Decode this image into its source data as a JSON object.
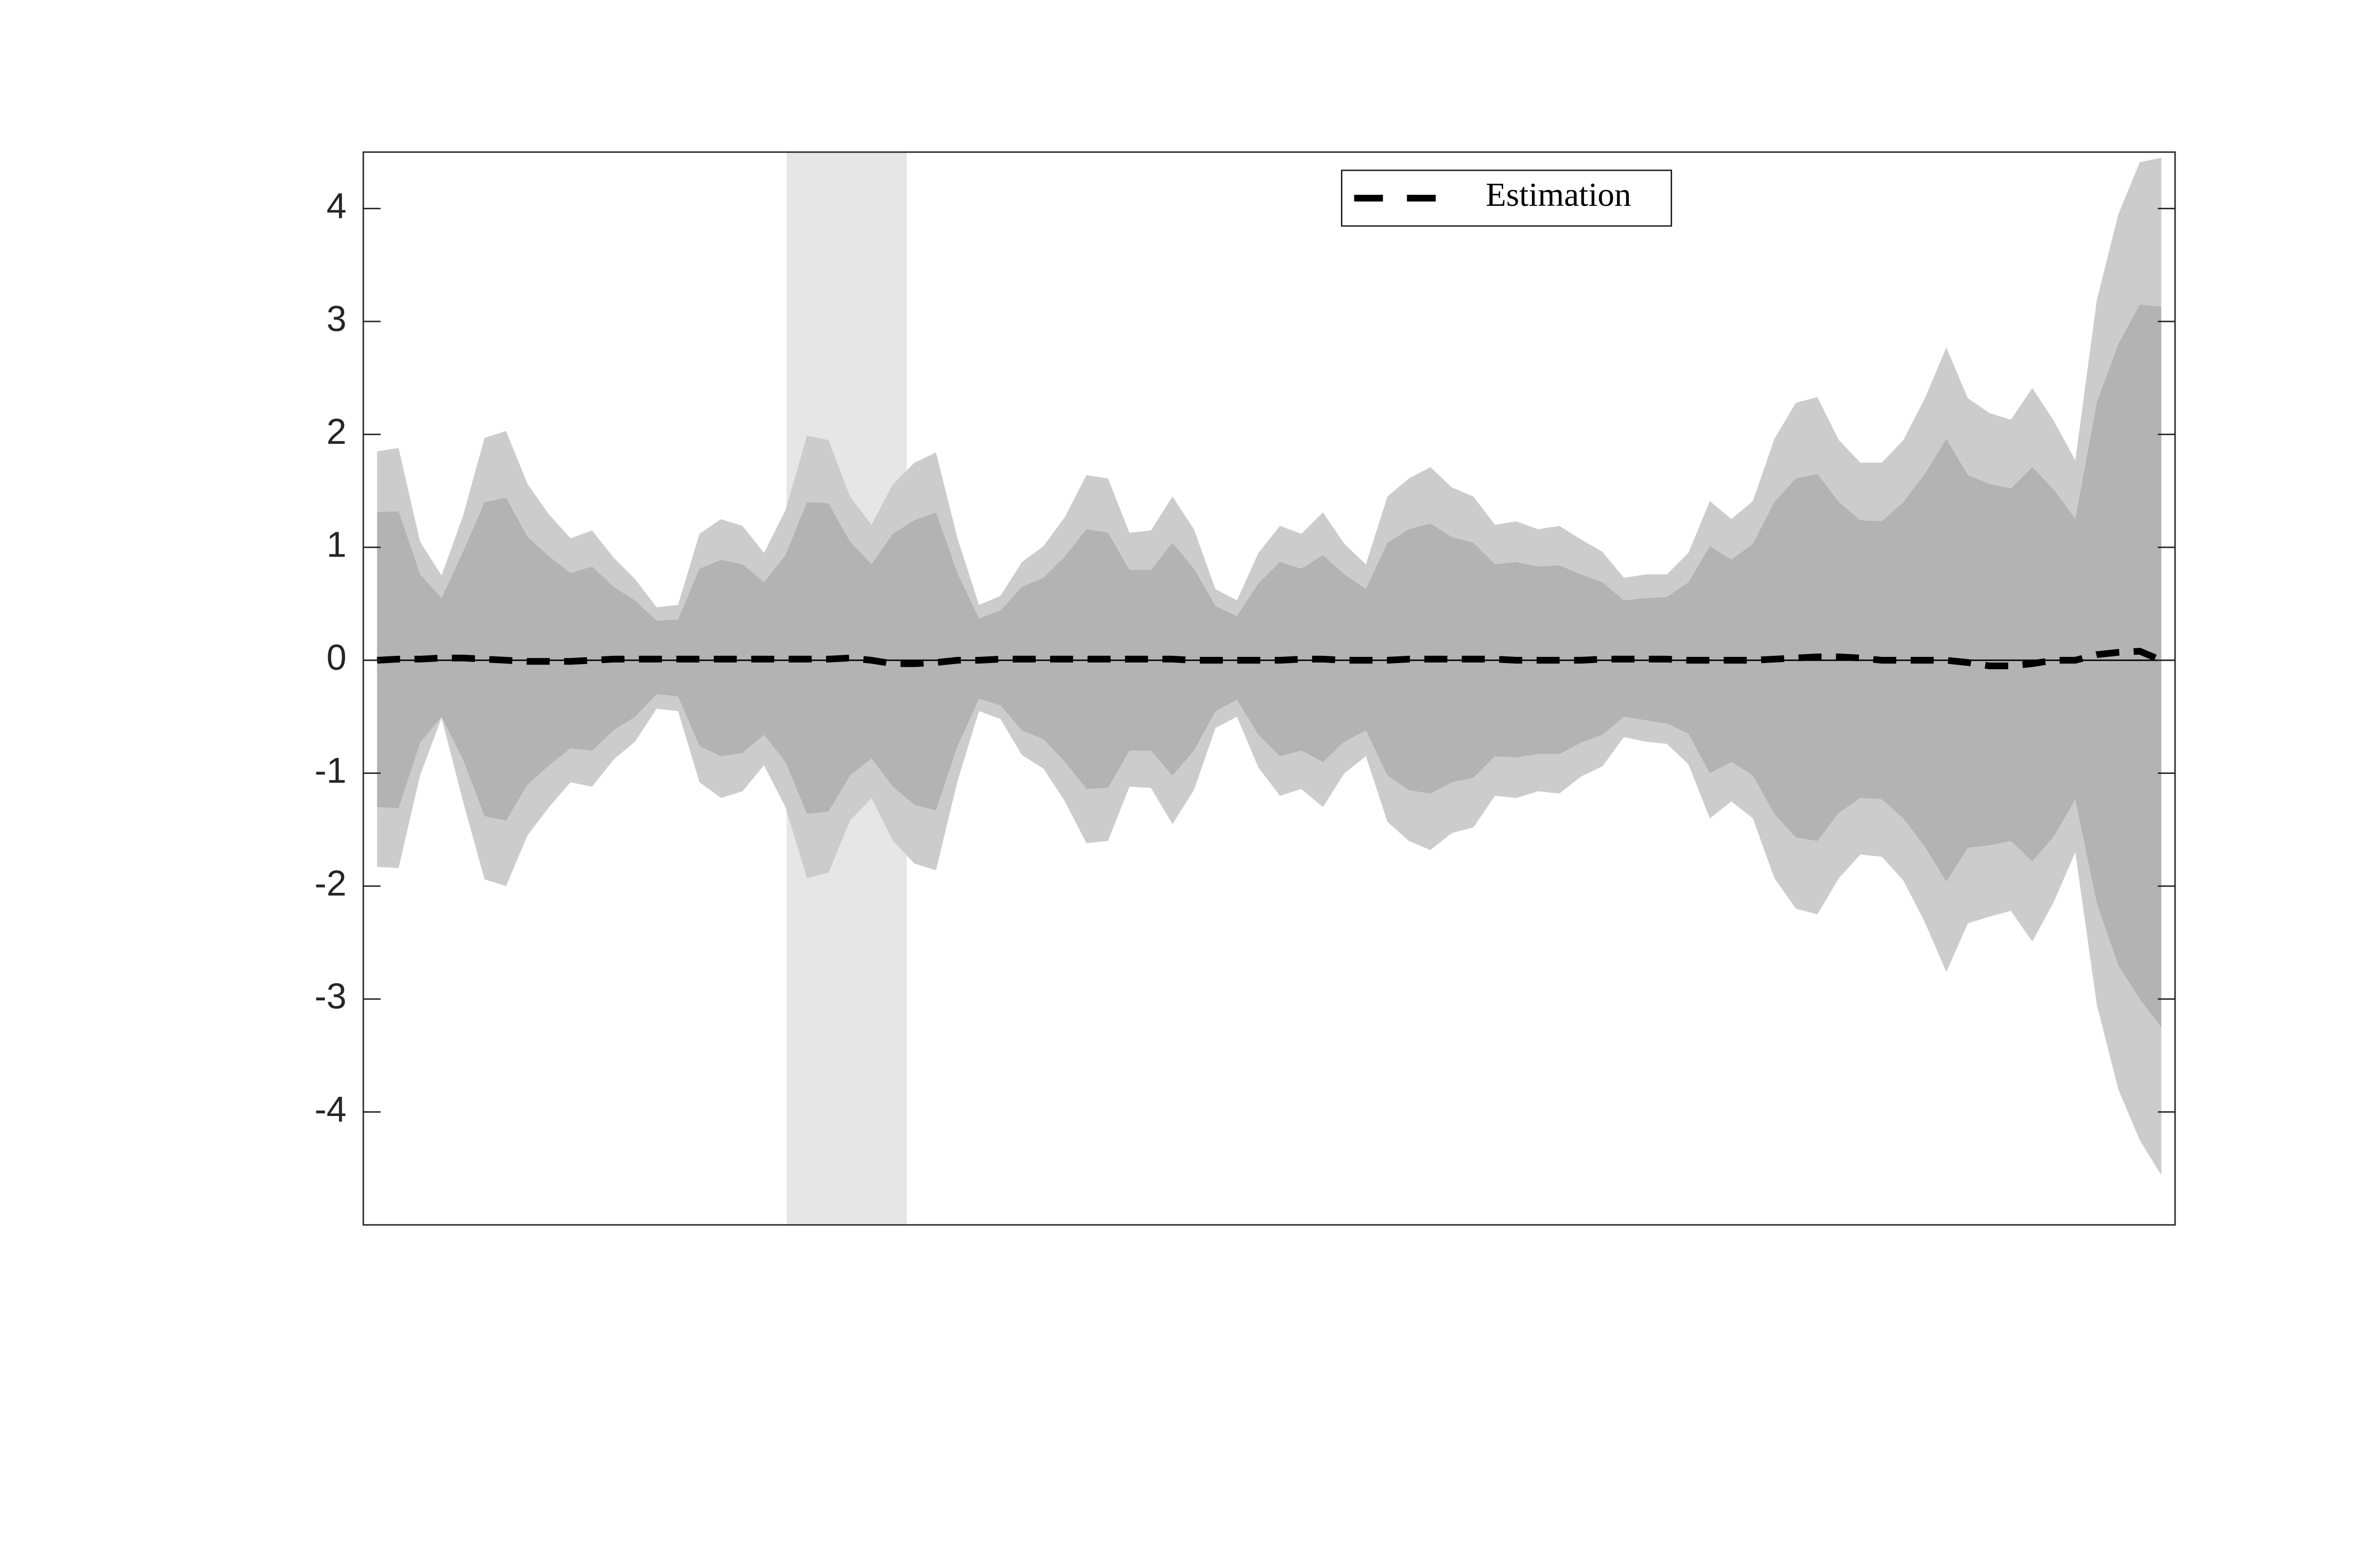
{
  "chart_data": {
    "type": "line",
    "x": [
      1,
      2,
      3,
      4,
      5,
      6,
      7,
      8,
      9,
      10,
      11,
      12,
      13,
      14,
      15,
      16,
      17,
      18,
      19,
      20,
      21,
      22,
      23,
      24,
      25,
      26,
      27,
      28,
      29,
      30,
      31,
      32,
      33,
      34,
      35,
      36,
      37,
      38,
      39,
      40,
      41,
      42,
      43,
      44,
      45,
      46,
      47,
      48,
      49,
      50,
      51,
      52,
      53,
      54,
      55,
      56,
      57,
      58,
      59,
      60,
      61,
      62,
      63,
      64,
      65,
      66,
      67,
      68,
      69,
      70,
      71,
      72,
      73,
      74,
      75,
      76,
      77,
      78,
      79,
      80,
      81,
      82,
      83,
      84
    ],
    "xlim": [
      0.36,
      84.64
    ],
    "ylim": [
      -5,
      4.5
    ],
    "yticks": [
      -4,
      -3,
      -2,
      -1,
      0,
      1,
      2,
      3,
      4
    ],
    "highlight": {
      "x": [
        20.05,
        25.64
      ],
      "color": "#e6e6e6"
    },
    "bands": [
      {
        "color": "#cccccc",
        "upper": [
          1.85,
          1.88,
          1.05,
          0.75,
          1.28,
          1.97,
          2.03,
          1.56,
          1.29,
          1.08,
          1.15,
          0.91,
          0.72,
          0.47,
          0.49,
          1.12,
          1.25,
          1.19,
          0.95,
          1.33,
          1.99,
          1.95,
          1.45,
          1.2,
          1.56,
          1.75,
          1.84,
          1.08,
          0.49,
          0.57,
          0.87,
          1.01,
          1.27,
          1.64,
          1.61,
          1.13,
          1.15,
          1.45,
          1.16,
          0.63,
          0.53,
          0.95,
          1.19,
          1.12,
          1.31,
          1.03,
          0.85,
          1.45,
          1.61,
          1.71,
          1.53,
          1.45,
          1.2,
          1.23,
          1.16,
          1.19,
          1.07,
          0.96,
          0.73,
          0.76,
          0.76,
          0.95,
          1.41,
          1.25,
          1.41,
          1.96,
          2.28,
          2.33,
          1.95,
          1.75,
          1.75,
          1.95,
          2.32,
          2.77,
          2.32,
          2.19,
          2.13,
          2.41,
          2.12,
          1.77,
          3.19,
          3.95,
          4.41,
          4.45
        ],
        "lower": [
          -1.83,
          -1.84,
          -1.02,
          -0.51,
          -1.25,
          -1.94,
          -2.0,
          -1.55,
          -1.3,
          -1.08,
          -1.12,
          -0.88,
          -0.72,
          -0.43,
          -0.45,
          -1.08,
          -1.22,
          -1.16,
          -0.93,
          -1.3,
          -1.93,
          -1.88,
          -1.42,
          -1.22,
          -1.6,
          -1.8,
          -1.86,
          -1.07,
          -0.45,
          -0.52,
          -0.84,
          -0.96,
          -1.25,
          -1.62,
          -1.6,
          -1.12,
          -1.13,
          -1.45,
          -1.15,
          -0.6,
          -0.5,
          -0.95,
          -1.2,
          -1.14,
          -1.3,
          -1.0,
          -0.85,
          -1.43,
          -1.6,
          -1.68,
          -1.53,
          -1.48,
          -1.2,
          -1.22,
          -1.16,
          -1.18,
          -1.03,
          -0.94,
          -0.68,
          -0.72,
          -0.74,
          -0.92,
          -1.4,
          -1.25,
          -1.4,
          -1.93,
          -2.2,
          -2.25,
          -1.93,
          -1.72,
          -1.74,
          -1.95,
          -2.32,
          -2.76,
          -2.33,
          -2.27,
          -2.22,
          -2.49,
          -2.14,
          -1.7,
          -3.05,
          -3.8,
          -4.25,
          -4.56
        ]
      },
      {
        "color": "#b3b3b3",
        "upper": [
          1.31,
          1.32,
          0.76,
          0.55,
          0.96,
          1.4,
          1.44,
          1.09,
          0.92,
          0.77,
          0.83,
          0.65,
          0.53,
          0.35,
          0.36,
          0.81,
          0.89,
          0.85,
          0.69,
          0.93,
          1.4,
          1.39,
          1.05,
          0.85,
          1.12,
          1.24,
          1.31,
          0.77,
          0.37,
          0.44,
          0.65,
          0.73,
          0.92,
          1.16,
          1.13,
          0.8,
          0.8,
          1.04,
          0.81,
          0.48,
          0.39,
          0.68,
          0.87,
          0.81,
          0.93,
          0.76,
          0.63,
          1.04,
          1.16,
          1.21,
          1.09,
          1.04,
          0.85,
          0.87,
          0.83,
          0.84,
          0.76,
          0.69,
          0.53,
          0.55,
          0.56,
          0.69,
          1.01,
          0.89,
          1.03,
          1.4,
          1.61,
          1.65,
          1.4,
          1.24,
          1.23,
          1.4,
          1.65,
          1.96,
          1.64,
          1.56,
          1.52,
          1.71,
          1.51,
          1.25,
          2.28,
          2.8,
          3.15,
          3.13
        ],
        "lower": [
          -1.3,
          -1.31,
          -0.73,
          -0.5,
          -0.88,
          -1.38,
          -1.42,
          -1.1,
          -0.93,
          -0.78,
          -0.8,
          -0.62,
          -0.5,
          -0.3,
          -0.32,
          -0.76,
          -0.85,
          -0.82,
          -0.66,
          -0.9,
          -1.36,
          -1.34,
          -1.02,
          -0.87,
          -1.12,
          -1.28,
          -1.33,
          -0.76,
          -0.34,
          -0.4,
          -0.62,
          -0.7,
          -0.9,
          -1.14,
          -1.13,
          -0.8,
          -0.8,
          -1.02,
          -0.8,
          -0.45,
          -0.35,
          -0.66,
          -0.85,
          -0.8,
          -0.9,
          -0.72,
          -0.62,
          -1.02,
          -1.15,
          -1.18,
          -1.08,
          -1.04,
          -0.85,
          -0.86,
          -0.83,
          -0.83,
          -0.73,
          -0.66,
          -0.5,
          -0.53,
          -0.56,
          -0.65,
          -1.0,
          -0.9,
          -1.02,
          -1.36,
          -1.57,
          -1.6,
          -1.35,
          -1.22,
          -1.23,
          -1.4,
          -1.65,
          -1.96,
          -1.66,
          -1.64,
          -1.6,
          -1.78,
          -1.56,
          -1.23,
          -2.15,
          -2.7,
          -3.0,
          -3.25
        ]
      }
    ],
    "series": [
      {
        "name": "Estimation",
        "color": "#000000",
        "dashed": true,
        "values": [
          0.0,
          0.01,
          0.01,
          0.02,
          0.02,
          0.01,
          0.0,
          -0.01,
          -0.01,
          -0.01,
          0.0,
          0.01,
          0.01,
          0.01,
          0.01,
          0.01,
          0.01,
          0.01,
          0.01,
          0.01,
          0.01,
          0.01,
          0.02,
          0.0,
          -0.03,
          -0.03,
          -0.02,
          0.0,
          0.0,
          0.01,
          0.01,
          0.01,
          0.01,
          0.01,
          0.01,
          0.01,
          0.01,
          0.01,
          0.0,
          0.0,
          0.0,
          0.0,
          0.0,
          0.01,
          0.01,
          0.0,
          0.0,
          0.0,
          0.01,
          0.01,
          0.01,
          0.01,
          0.01,
          0.0,
          0.0,
          0.0,
          0.0,
          0.01,
          0.01,
          0.01,
          0.01,
          0.0,
          0.0,
          0.0,
          0.0,
          0.01,
          0.02,
          0.03,
          0.03,
          0.02,
          0.0,
          0.0,
          0.0,
          0.0,
          -0.02,
          -0.05,
          -0.05,
          -0.03,
          0.0,
          0.0,
          0.05,
          0.07,
          0.08,
          0.0
        ]
      }
    ],
    "legend": "north"
  }
}
